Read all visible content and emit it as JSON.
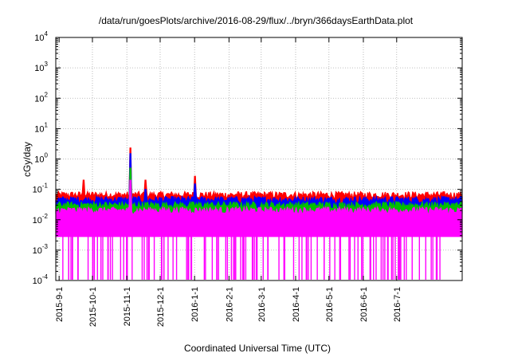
{
  "chart_data": {
    "type": "line",
    "title": "/data/run/goesPlots/archive/2016-08-29/flux/../bryn/366daysEarthData.plot",
    "xlabel": "Coordinated Universal Time (UTC)",
    "ylabel": "cGy/day",
    "yscale": "log",
    "ylim": [
      0.0001,
      10000
    ],
    "xlim": [
      "2015-08-29",
      "2016-08-29"
    ],
    "grid": true,
    "x_ticks": [
      "2015-9-1",
      "2015-10-1",
      "2015-11-1",
      "2015-12-1",
      "2016-1-1",
      "2016-2-1",
      "2016-3-1",
      "2016-4-1",
      "2016-5-1",
      "2016-6-1",
      "2016-7-1"
    ],
    "y_ticks": [
      {
        "value": 0.0001,
        "base": "10",
        "exp": "-4"
      },
      {
        "value": 0.001,
        "base": "10",
        "exp": "-3"
      },
      {
        "value": 0.01,
        "base": "10",
        "exp": "-2"
      },
      {
        "value": 0.1,
        "base": "10",
        "exp": "-1"
      },
      {
        "value": 1,
        "base": "10",
        "exp": "0"
      },
      {
        "value": 10,
        "base": "10",
        "exp": "1"
      },
      {
        "value": 100,
        "base": "10",
        "exp": "2"
      },
      {
        "value": 1000,
        "base": "10",
        "exp": "3"
      },
      {
        "value": 10000,
        "base": "10",
        "exp": "4"
      }
    ],
    "series": [
      {
        "color": "#ff0000",
        "baseline": 0.065,
        "spikes": [
          {
            "x": "2015-09-23",
            "y": 0.2
          },
          {
            "x": "2015-11-04",
            "y": 2.3
          },
          {
            "x": "2015-11-18",
            "y": 0.2
          },
          {
            "x": "2016-01-01",
            "y": 0.27
          }
        ]
      },
      {
        "color": "#0000ff",
        "baseline": 0.045,
        "spikes": [
          {
            "x": "2015-11-04",
            "y": 1.5
          },
          {
            "x": "2015-11-18",
            "y": 0.1
          },
          {
            "x": "2016-01-01",
            "y": 0.15
          }
        ]
      },
      {
        "color": "#00c000",
        "baseline": 0.03,
        "spikes": [
          {
            "x": "2015-11-04",
            "y": 0.5
          }
        ]
      },
      {
        "color": "#ff00ff",
        "baseline": 0.02,
        "floor": 0.0028,
        "spikes": [
          {
            "x": "2015-11-04",
            "y": 0.2
          }
        ]
      }
    ]
  }
}
